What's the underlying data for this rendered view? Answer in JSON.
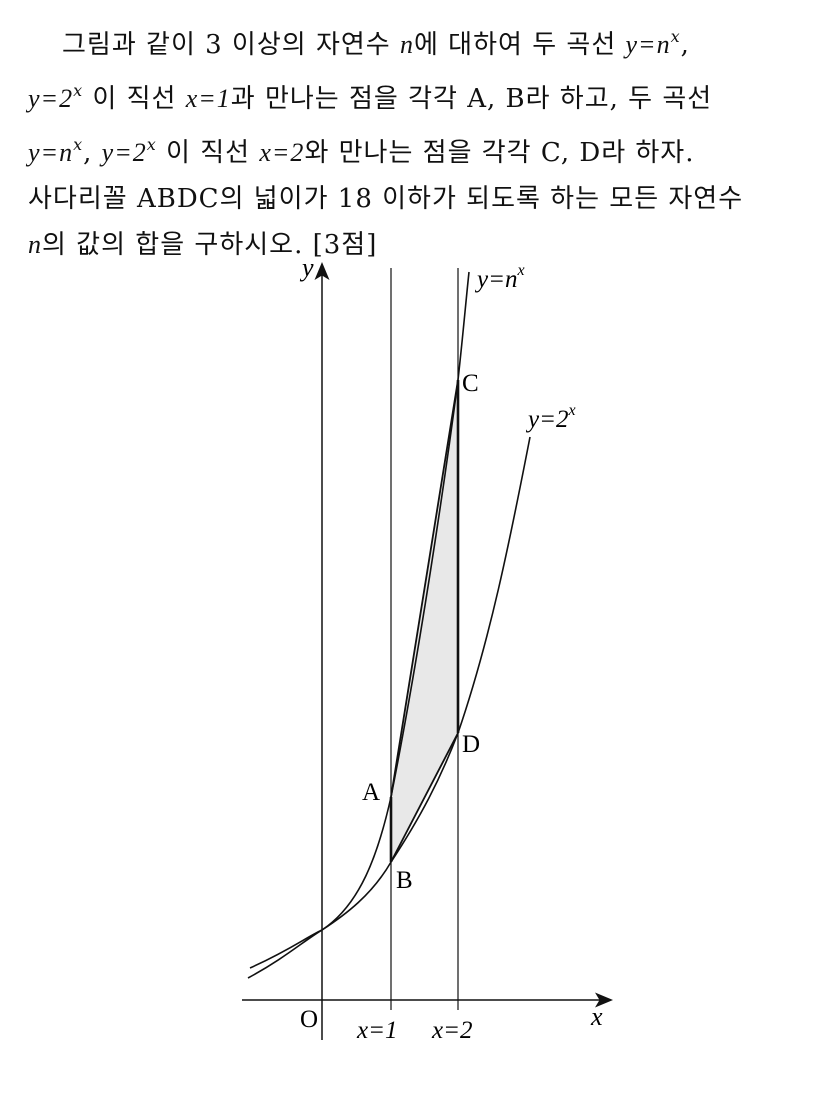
{
  "problem": {
    "line1a": "그림과 같이 3 이상의 자연수 ",
    "line1_n": "n",
    "line1b": "에 대하여 두 곡선 ",
    "line1_eq": "y=n",
    "line1_exp": "x",
    "line1c": ",",
    "line2_eq": "y=2",
    "line2_exp": "x",
    "line2a": " 이 직선 ",
    "line2_x1": "x=1",
    "line2b": "과 만나는 점을 각각 A, B라 하고, 두 곡선",
    "line3_eq1": "y=n",
    "line3_exp1": "x",
    "line3_sep": ", ",
    "line3_eq2": "y=2",
    "line3_exp2": "x",
    "line3a": " 이 직선 ",
    "line3_x2": "x=2",
    "line3b": "와 만나는 점을 각각 C, D라 하자.",
    "line4": "사다리꼴 ABDC의 넓이가 18 이하가 되도록 하는 모든 자연수",
    "line5_n": "n",
    "line5a": "의 값의 합을 구하시오. [3점]"
  },
  "figure": {
    "y_axis_label": "y",
    "x_axis_label": "x",
    "origin_label": "O",
    "x1_label": "x=1",
    "x2_label": "x=2",
    "curve_n_label_base": "y=n",
    "curve_n_label_exp": "x",
    "curve_2_label_base": "y=2",
    "curve_2_label_exp": "x",
    "point_A": "A",
    "point_B": "B",
    "point_C": "C",
    "point_D": "D",
    "shade_color": "#e8e8e8",
    "line_color": "#111111"
  }
}
